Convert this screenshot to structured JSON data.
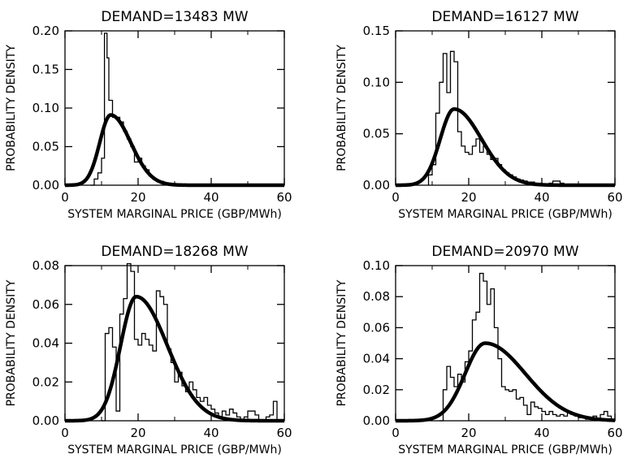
{
  "chart_data": [
    {
      "type": "histogram-with-fit",
      "title": "DEMAND=13483 MW",
      "xlabel": "SYSTEM MARGINAL PRICE (GBP/MWh)",
      "ylabel": "PROBABILITY DENSITY",
      "xlim": [
        0,
        60
      ],
      "ylim": [
        0,
        0.2
      ],
      "xticks": [
        "0",
        "20",
        "40",
        "60"
      ],
      "yticks": [
        "0.00",
        "0.05",
        "0.10",
        "0.15",
        "0.20"
      ],
      "histogram": {
        "x": [
          7.0,
          8.0,
          9.0,
          10.0,
          10.8,
          11.5,
          12.0,
          13.0,
          14.0,
          15.0,
          16.0,
          17.0,
          18.0,
          19.0,
          20.0,
          21.0,
          22.0,
          23.0,
          24.0,
          25.0,
          26.0,
          27.0,
          28.0,
          29.0,
          30.0
        ],
        "y": [
          0.0,
          0.008,
          0.016,
          0.035,
          0.197,
          0.165,
          0.11,
          0.088,
          0.088,
          0.082,
          0.07,
          0.06,
          0.05,
          0.03,
          0.035,
          0.025,
          0.02,
          0.012,
          0.008,
          0.006,
          0.005,
          0.003,
          0.002,
          0.001,
          0.0
        ]
      },
      "fit": {
        "mode": 12.5,
        "peak": 0.091,
        "sigma_left": 3.0,
        "sigma_right": 5.5
      }
    },
    {
      "type": "histogram-with-fit",
      "title": "DEMAND=16127 MW",
      "xlabel": "SYSTEM MARGINAL PRICE (GBP/MWh)",
      "ylabel": "PROBABILITY DENSITY",
      "xlim": [
        0,
        60
      ],
      "ylim": [
        0,
        0.15
      ],
      "xticks": [
        "0",
        "20",
        "40",
        "60"
      ],
      "yticks": [
        "0.00",
        "0.05",
        "0.10",
        "0.15"
      ],
      "histogram": {
        "x": [
          9,
          10,
          11,
          12,
          13,
          14,
          15,
          16,
          17,
          18,
          19,
          20,
          21,
          22,
          23,
          24,
          25,
          26,
          27,
          28,
          29,
          30,
          31,
          32,
          33,
          34,
          35,
          36,
          38,
          40,
          42,
          43,
          45,
          46,
          48
        ],
        "y": [
          0.01,
          0.02,
          0.07,
          0.1,
          0.128,
          0.09,
          0.13,
          0.12,
          0.052,
          0.038,
          0.032,
          0.03,
          0.038,
          0.045,
          0.032,
          0.038,
          0.03,
          0.025,
          0.026,
          0.02,
          0.015,
          0.012,
          0.01,
          0.008,
          0.006,
          0.005,
          0.004,
          0.003,
          0.002,
          0.0,
          0.002,
          0.004,
          0.002,
          0.0,
          0.0
        ]
      },
      "fit": {
        "mode": 16.0,
        "peak": 0.074,
        "sigma_left": 3.8,
        "sigma_right": 7.5
      }
    },
    {
      "type": "histogram-with-fit",
      "title": "DEMAND=18268 MW",
      "xlabel": "SYSTEM MARGINAL PRICE (GBP/MWh)",
      "ylabel": "PROBABILITY DENSITY",
      "xlim": [
        0,
        60
      ],
      "ylim": [
        0,
        0.08
      ],
      "xticks": [
        "0",
        "20",
        "40",
        "60"
      ],
      "yticks": [
        "0.00",
        "0.02",
        "0.04",
        "0.06",
        "0.08"
      ],
      "histogram": {
        "x": [
          10,
          11,
          12,
          13,
          14,
          15,
          16,
          17,
          18,
          19,
          20,
          21,
          22,
          23,
          24,
          25,
          26,
          27,
          28,
          29,
          30,
          31,
          32,
          33,
          34,
          35,
          36,
          37,
          38,
          39,
          40,
          41,
          42,
          43,
          44,
          45,
          46,
          47,
          48,
          49,
          50,
          51,
          52,
          53,
          54,
          55,
          56,
          57,
          58
        ],
        "y": [
          0.0,
          0.045,
          0.048,
          0.038,
          0.005,
          0.055,
          0.063,
          0.081,
          0.077,
          0.042,
          0.039,
          0.045,
          0.042,
          0.039,
          0.036,
          0.067,
          0.064,
          0.06,
          0.037,
          0.03,
          0.02,
          0.025,
          0.018,
          0.015,
          0.02,
          0.016,
          0.012,
          0.01,
          0.012,
          0.008,
          0.006,
          0.004,
          0.002,
          0.005,
          0.003,
          0.006,
          0.004,
          0.002,
          0.0,
          0.002,
          0.005,
          0.005,
          0.003,
          0.0,
          0.0,
          0.002,
          0.003,
          0.01,
          0.0
        ]
      },
      "fit": {
        "mode": 19.5,
        "peak": 0.064,
        "sigma_left": 4.3,
        "sigma_right": 8.5
      }
    },
    {
      "type": "histogram-with-fit",
      "title": "DEMAND=20970 MW",
      "xlabel": "SYSTEM MARGINAL PRICE (GBP/MWh)",
      "ylabel": "PROBABILITY DENSITY",
      "xlim": [
        0,
        60
      ],
      "ylim": [
        0,
        0.1
      ],
      "xticks": [
        "0",
        "20",
        "40",
        "60"
      ],
      "yticks": [
        "0.00",
        "0.02",
        "0.04",
        "0.06",
        "0.08",
        "0.10"
      ],
      "histogram": {
        "x": [
          12,
          13,
          14,
          15,
          16,
          17,
          18,
          19,
          20,
          21,
          22,
          23,
          24,
          25,
          26,
          27,
          28,
          29,
          30,
          31,
          32,
          33,
          34,
          35,
          36,
          37,
          38,
          39,
          40,
          41,
          42,
          43,
          44,
          45,
          46,
          47,
          48,
          49,
          50,
          51,
          52,
          53,
          54,
          55,
          56,
          57,
          58,
          59
        ],
        "y": [
          0.0,
          0.02,
          0.035,
          0.028,
          0.022,
          0.03,
          0.025,
          0.038,
          0.045,
          0.065,
          0.07,
          0.095,
          0.09,
          0.075,
          0.085,
          0.06,
          0.04,
          0.022,
          0.02,
          0.019,
          0.02,
          0.014,
          0.015,
          0.01,
          0.004,
          0.012,
          0.009,
          0.008,
          0.006,
          0.004,
          0.006,
          0.004,
          0.003,
          0.004,
          0.003,
          0.005,
          0.004,
          0.003,
          0.002,
          0.002,
          0.001,
          0.002,
          0.003,
          0.001,
          0.004,
          0.006,
          0.003,
          0.0
        ]
      },
      "fit": {
        "mode": 24.5,
        "peak": 0.05,
        "sigma_left": 5.5,
        "sigma_right": 11.0
      }
    }
  ]
}
